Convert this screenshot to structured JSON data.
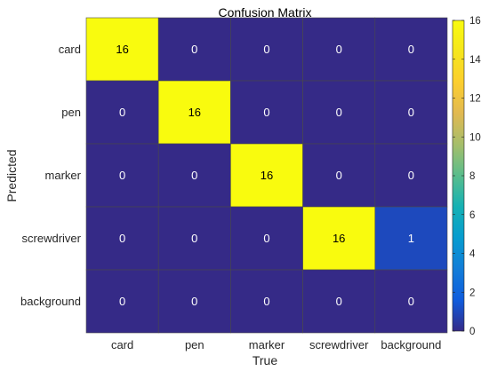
{
  "chart_data": {
    "type": "heatmap",
    "title": "Confusion Matrix",
    "xlabel": "True",
    "ylabel": "Predicted",
    "x_categories": [
      "card",
      "pen",
      "marker",
      "screwdriver",
      "background"
    ],
    "y_categories": [
      "card",
      "pen",
      "marker",
      "screwdriver",
      "background"
    ],
    "values": [
      [
        16,
        0,
        0,
        0,
        0
      ],
      [
        0,
        16,
        0,
        0,
        0
      ],
      [
        0,
        0,
        16,
        0,
        0
      ],
      [
        0,
        0,
        0,
        16,
        1
      ],
      [
        0,
        0,
        0,
        0,
        0
      ]
    ],
    "colormap": "parula",
    "colorbar": {
      "range": [
        0,
        16
      ],
      "ticks": [
        0,
        2,
        4,
        6,
        8,
        10,
        12,
        14,
        16
      ],
      "position": "right"
    },
    "grid": false
  },
  "colors": {
    "low": "#352a87",
    "high": "#f9fb0e",
    "cell_border": "#4a4a4a",
    "axis_text": "#262626"
  }
}
